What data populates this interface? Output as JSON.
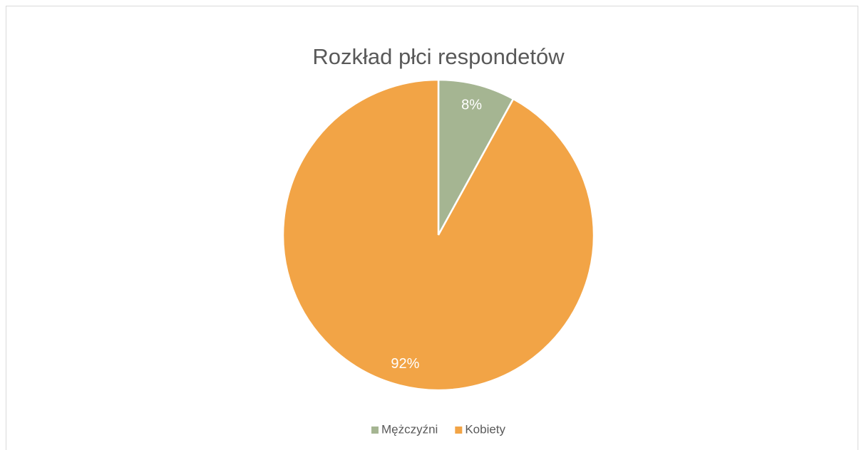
{
  "chart_data": {
    "type": "pie",
    "title": "Rozkład płci respondetów",
    "categories": [
      "Mężczyźni",
      "Kobiety"
    ],
    "values": [
      8,
      92
    ],
    "value_labels": [
      "8%",
      "92%"
    ],
    "colors": [
      "#a5b592",
      "#f2a446"
    ],
    "legend": "bottom"
  }
}
